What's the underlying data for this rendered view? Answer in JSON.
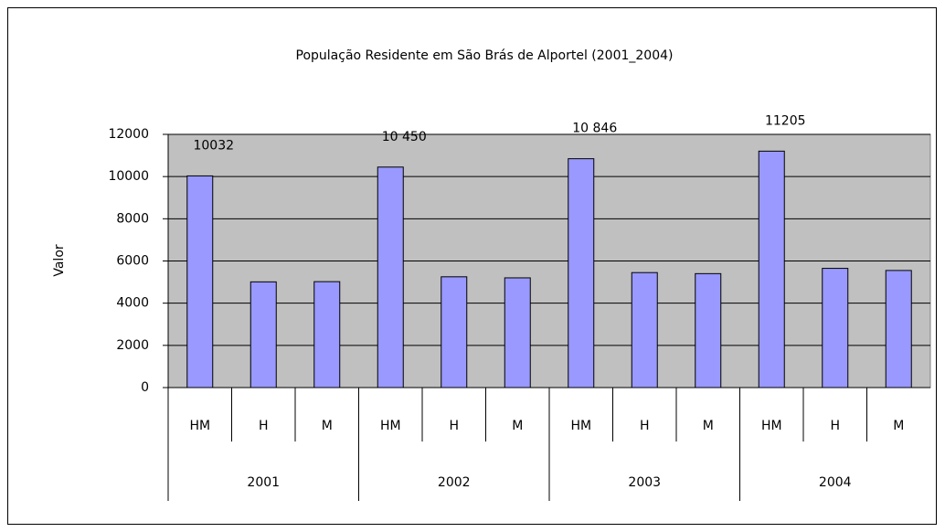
{
  "chart_data": {
    "type": "bar",
    "title": "População Residente em São Brás de Alportel (2001_2004)",
    "y_label": "Valor",
    "categories": [
      "HM",
      "H",
      "M",
      "HM",
      "H",
      "M",
      "HM",
      "H",
      "M",
      "HM",
      "H",
      "M"
    ],
    "groups": [
      "2001",
      "2002",
      "2003",
      "2004"
    ],
    "values": [
      10032,
      5010,
      5020,
      10450,
      5250,
      5200,
      10846,
      5450,
      5400,
      11205,
      5650,
      5550
    ],
    "value_labels": [
      "10032",
      null,
      null,
      "10 450",
      null,
      null,
      "10 846",
      null,
      null,
      "11205",
      null,
      null
    ],
    "color": "#9999ff",
    "ylim": [
      0,
      12000
    ],
    "yticks": [
      0,
      2000,
      4000,
      6000,
      8000,
      10000,
      12000
    ],
    "grid": true
  }
}
